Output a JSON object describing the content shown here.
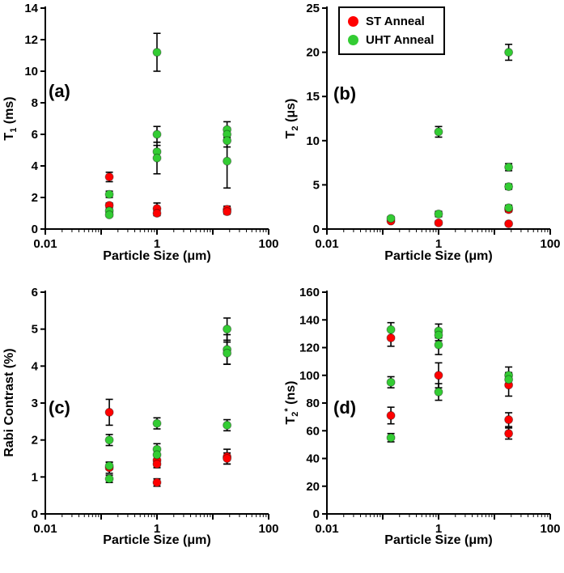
{
  "legend": {
    "items": [
      {
        "label": "ST Anneal",
        "color": "#FF0000"
      },
      {
        "label": "UHT Anneal",
        "color": "#33CC33"
      }
    ]
  },
  "chart_data": [
    {
      "type": "scatter",
      "panel": "(a)",
      "xscale": "log",
      "xlim": [
        0.01,
        100
      ],
      "xticks_labeled": [
        0.01,
        1,
        100
      ],
      "ylim": [
        0,
        14
      ],
      "ystep": 2,
      "xlabel": "Particle Size (μm)",
      "ylabel": {
        "base": "T",
        "sub": "1",
        "sup": "",
        "rest": " (ms)"
      },
      "series": [
        {
          "name": "ST Anneal",
          "color": "#FF0000",
          "points": [
            {
              "x": 0.14,
              "y": 3.3,
              "e": 0.3
            },
            {
              "x": 0.14,
              "y": 1.5,
              "e": 0.15
            },
            {
              "x": 1,
              "y": 1.3,
              "e": 0.35
            },
            {
              "x": 1,
              "y": 1.0,
              "e": 0.15
            },
            {
              "x": 18,
              "y": 1.25,
              "e": 0.2
            },
            {
              "x": 18,
              "y": 1.1,
              "e": 0.15
            }
          ]
        },
        {
          "name": "UHT Anneal",
          "color": "#33CC33",
          "points": [
            {
              "x": 0.14,
              "y": 2.2,
              "e": 0.2
            },
            {
              "x": 0.14,
              "y": 1.15,
              "e": 0.1
            },
            {
              "x": 0.14,
              "y": 0.9,
              "e": 0.1
            },
            {
              "x": 1,
              "y": 11.2,
              "e": 1.2
            },
            {
              "x": 1,
              "y": 6.0,
              "e": 0.5
            },
            {
              "x": 1,
              "y": 4.9,
              "e": 0.4
            },
            {
              "x": 1,
              "y": 4.5,
              "e": 1.0
            },
            {
              "x": 18,
              "y": 6.3,
              "e": 0.5
            },
            {
              "x": 18,
              "y": 6.0,
              "e": 0.4
            },
            {
              "x": 18,
              "y": 5.6,
              "e": 0.4
            },
            {
              "x": 18,
              "y": 4.3,
              "e": 1.7
            }
          ]
        }
      ]
    },
    {
      "type": "scatter",
      "panel": "(b)",
      "xscale": "log",
      "xlim": [
        0.01,
        100
      ],
      "xticks_labeled": [
        0.01,
        1,
        100
      ],
      "ylim": [
        0,
        25
      ],
      "ystep": 5,
      "xlabel": "Particle Size (μm)",
      "ylabel": {
        "base": "T",
        "sub": "2",
        "sup": "",
        "rest": " (μs)"
      },
      "series": [
        {
          "name": "ST Anneal",
          "color": "#FF0000",
          "points": [
            {
              "x": 0.14,
              "y": 0.9,
              "e": 0.15
            },
            {
              "x": 1,
              "y": 0.7,
              "e": 0.2
            },
            {
              "x": 18,
              "y": 2.2,
              "e": 0.25
            },
            {
              "x": 18,
              "y": 0.6,
              "e": 0.1
            }
          ]
        },
        {
          "name": "UHT Anneal",
          "color": "#33CC33",
          "points": [
            {
              "x": 0.14,
              "y": 1.2,
              "e": 0.2
            },
            {
              "x": 1,
              "y": 11.0,
              "e": 0.6
            },
            {
              "x": 1,
              "y": 1.7,
              "e": 0.3
            },
            {
              "x": 18,
              "y": 20.0,
              "e": 0.9
            },
            {
              "x": 18,
              "y": 7.0,
              "e": 0.4
            },
            {
              "x": 18,
              "y": 4.8,
              "e": 0.3
            },
            {
              "x": 18,
              "y": 2.4,
              "e": 0.3
            }
          ]
        }
      ]
    },
    {
      "type": "scatter",
      "panel": "(c)",
      "xscale": "log",
      "xlim": [
        0.01,
        100
      ],
      "xticks_labeled": [
        0.01,
        1,
        100
      ],
      "ylim": [
        0,
        6
      ],
      "ystep": 1,
      "xlabel": "Particle Size (μm)",
      "ylabel": {
        "base": "Rabi Contrast (%)",
        "sub": "",
        "sup": "",
        "rest": ""
      },
      "series": [
        {
          "name": "ST Anneal",
          "color": "#FF0000",
          "points": [
            {
              "x": 0.14,
              "y": 2.75,
              "e": 0.35
            },
            {
              "x": 0.14,
              "y": 1.25,
              "e": 0.15
            },
            {
              "x": 1,
              "y": 1.45,
              "e": 0.15
            },
            {
              "x": 1,
              "y": 1.35,
              "e": 0.1
            },
            {
              "x": 1,
              "y": 0.85,
              "e": 0.1
            },
            {
              "x": 18,
              "y": 1.55,
              "e": 0.2
            },
            {
              "x": 18,
              "y": 1.5,
              "e": 0.15
            }
          ]
        },
        {
          "name": "UHT Anneal",
          "color": "#33CC33",
          "points": [
            {
              "x": 0.14,
              "y": 2.0,
              "e": 0.15
            },
            {
              "x": 0.14,
              "y": 1.3,
              "e": 0.1
            },
            {
              "x": 0.14,
              "y": 0.95,
              "e": 0.1
            },
            {
              "x": 1,
              "y": 2.45,
              "e": 0.15
            },
            {
              "x": 1,
              "y": 1.75,
              "e": 0.15
            },
            {
              "x": 1,
              "y": 1.6,
              "e": 0.15
            },
            {
              "x": 18,
              "y": 5.0,
              "e": 0.3
            },
            {
              "x": 18,
              "y": 4.45,
              "e": 0.4
            },
            {
              "x": 18,
              "y": 4.35,
              "e": 0.3
            },
            {
              "x": 18,
              "y": 2.4,
              "e": 0.15
            }
          ]
        }
      ]
    },
    {
      "type": "scatter",
      "panel": "(d)",
      "xscale": "log",
      "xlim": [
        0.01,
        100
      ],
      "xticks_labeled": [
        0.01,
        1,
        100
      ],
      "ylim": [
        0,
        160
      ],
      "ystep": 20,
      "xlabel": "Particle Size (μm)",
      "ylabel": {
        "base": "T",
        "sub": "2",
        "sup": "*",
        "rest": " (ns)"
      },
      "series": [
        {
          "name": "ST Anneal",
          "color": "#FF0000",
          "points": [
            {
              "x": 0.14,
              "y": 127,
              "e": 6
            },
            {
              "x": 0.14,
              "y": 71,
              "e": 6
            },
            {
              "x": 1,
              "y": 100,
              "e": 9
            },
            {
              "x": 18,
              "y": 93,
              "e": 8
            },
            {
              "x": 18,
              "y": 68,
              "e": 5
            },
            {
              "x": 18,
              "y": 58,
              "e": 4
            }
          ]
        },
        {
          "name": "UHT Anneal",
          "color": "#33CC33",
          "points": [
            {
              "x": 0.14,
              "y": 133,
              "e": 5
            },
            {
              "x": 0.14,
              "y": 95,
              "e": 4
            },
            {
              "x": 0.14,
              "y": 55,
              "e": 3
            },
            {
              "x": 1,
              "y": 132,
              "e": 5
            },
            {
              "x": 1,
              "y": 129,
              "e": 4
            },
            {
              "x": 1,
              "y": 122,
              "e": 7
            },
            {
              "x": 1,
              "y": 88,
              "e": 6
            },
            {
              "x": 18,
              "y": 100,
              "e": 6
            },
            {
              "x": 18,
              "y": 97,
              "e": 5
            }
          ]
        }
      ]
    }
  ]
}
